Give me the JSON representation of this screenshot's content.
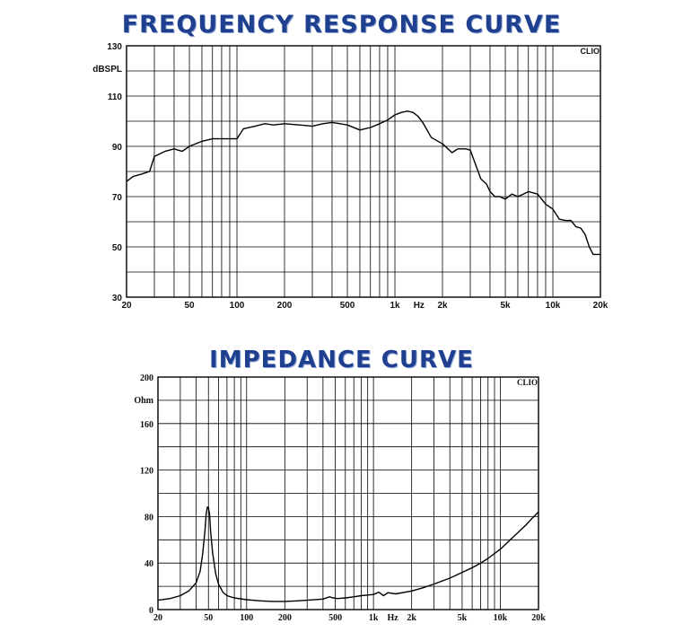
{
  "titles": {
    "frequency": "FREQUENCY RESPONSE CURVE",
    "impedance": "IMPEDANCE CURVE"
  },
  "colors": {
    "title": "#1f3f8f",
    "grid": "#000000",
    "curve": "#000000"
  },
  "chart_data": [
    {
      "type": "line",
      "title": "FREQUENCY RESPONSE CURVE",
      "ylabel": "dBSPL",
      "xlabel": "Hz",
      "watermark": "CLIO",
      "x_scale": "log",
      "xlim": [
        20,
        20000
      ],
      "ylim": [
        30,
        130
      ],
      "grid": true,
      "x_ticks": [
        20,
        50,
        100,
        200,
        500,
        1000,
        2000,
        5000,
        10000,
        20000
      ],
      "x_tick_labels": [
        "20",
        "50",
        "100",
        "200",
        "500",
        "1k",
        "2k",
        "5k",
        "10k",
        "20k"
      ],
      "y_ticks": [
        30,
        50,
        70,
        90,
        110,
        130
      ],
      "y_tick_labels": [
        "30",
        "50",
        "70",
        "90",
        "110",
        "130"
      ],
      "x": [
        20,
        22,
        25,
        28,
        30,
        35,
        40,
        45,
        50,
        60,
        70,
        80,
        90,
        100,
        110,
        130,
        150,
        170,
        200,
        250,
        300,
        350,
        400,
        450,
        500,
        600,
        700,
        800,
        900,
        1000,
        1100,
        1200,
        1300,
        1400,
        1500,
        1700,
        2000,
        2300,
        2500,
        2800,
        3000,
        3500,
        3800,
        4000,
        4300,
        4600,
        5000,
        5500,
        6000,
        6500,
        7000,
        7500,
        8000,
        9000,
        10000,
        11000,
        12000,
        13000,
        14000,
        15000,
        16000,
        17000,
        18000,
        19000,
        20000
      ],
      "y": [
        76,
        78,
        79,
        80,
        86,
        88,
        89,
        88,
        90,
        92,
        93,
        93,
        93,
        93,
        97,
        98,
        99,
        98.5,
        99,
        98.5,
        98,
        99,
        99.5,
        99,
        98.5,
        96.5,
        97.5,
        99,
        100.5,
        102.5,
        103.5,
        104,
        103.5,
        102,
        99.5,
        93.5,
        91,
        87.5,
        89,
        89,
        88.5,
        77,
        75,
        72,
        70,
        70,
        69,
        71,
        70,
        71,
        72,
        71.5,
        71,
        67,
        65,
        61,
        60.5,
        60.5,
        58,
        57.5,
        55,
        50,
        47,
        47,
        47
      ]
    },
    {
      "type": "line",
      "title": "IMPEDANCE CURVE",
      "ylabel": "Ohm",
      "xlabel": "Hz",
      "watermark": "CLIO",
      "x_scale": "log",
      "xlim": [
        20,
        20000
      ],
      "ylim": [
        0,
        200
      ],
      "grid": true,
      "x_ticks": [
        20,
        50,
        100,
        200,
        500,
        1000,
        2000,
        5000,
        10000,
        20000
      ],
      "x_tick_labels": [
        "20",
        "50",
        "100",
        "200",
        "500",
        "1k",
        "2k",
        "5k",
        "10k",
        "20k"
      ],
      "y_ticks": [
        0,
        40,
        80,
        120,
        160,
        200
      ],
      "y_tick_labels": [
        "0",
        "40",
        "80",
        "120",
        "160",
        "200"
      ],
      "x": [
        20,
        25,
        30,
        35,
        40,
        43,
        45,
        47,
        48,
        49,
        50,
        51,
        52,
        54,
        57,
        60,
        65,
        70,
        80,
        100,
        130,
        160,
        200,
        250,
        300,
        400,
        450,
        480,
        520,
        600,
        700,
        800,
        900,
        1000,
        1100,
        1200,
        1300,
        1500,
        2000,
        2500,
        3000,
        4000,
        5000,
        6000,
        7000,
        8000,
        10000,
        12000,
        14000,
        16000,
        18000,
        20000
      ],
      "y": [
        8,
        9.5,
        12,
        16,
        23,
        33,
        48,
        68,
        82,
        88,
        88,
        82,
        68,
        48,
        31,
        22,
        15,
        12,
        10,
        8.5,
        7.5,
        7,
        7,
        7.5,
        8,
        9,
        11,
        10,
        9.5,
        10,
        11,
        12,
        12.5,
        13,
        15,
        12,
        14.5,
        13.5,
        16,
        19,
        22,
        27,
        32,
        36,
        40,
        44,
        52,
        60,
        67,
        73,
        79,
        84
      ]
    }
  ]
}
